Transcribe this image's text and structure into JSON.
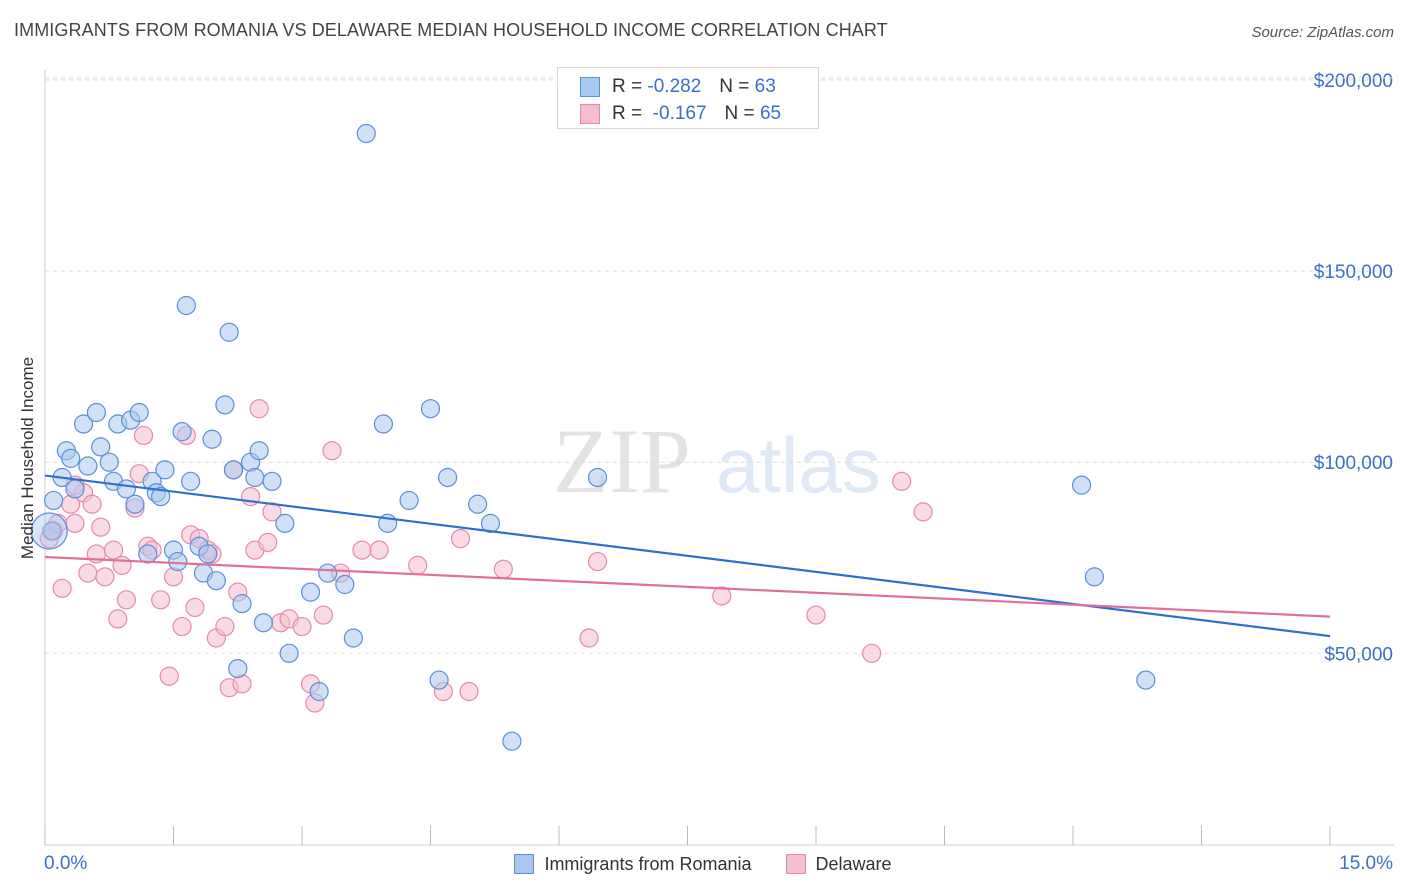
{
  "title": "IMMIGRANTS FROM ROMANIA VS DELAWARE MEDIAN HOUSEHOLD INCOME CORRELATION CHART",
  "source": "Source: ZipAtlas.com",
  "watermark": {
    "zip": "ZIP",
    "atlas": "atlas"
  },
  "legend_top": {
    "rows": [
      {
        "r_label": "R =",
        "r_value": "-0.282",
        "n_label": "N =",
        "n_value": "63"
      },
      {
        "r_label": "R =",
        "r_value": "-0.167",
        "n_label": "N =",
        "n_value": "65"
      }
    ]
  },
  "colors": {
    "romania_fill": "#a9c8f0",
    "romania_stroke": "#5b8fd6",
    "romania_line": "#2f6fd0",
    "delaware_fill": "#f6bdd0",
    "delaware_stroke": "#e58aab",
    "delaware_line": "#e06f9a",
    "axis_text": "#3b6fc8",
    "grid": "#dddddd"
  },
  "chart_data": {
    "type": "scatter",
    "title": "IMMIGRANTS FROM ROMANIA VS DELAWARE MEDIAN HOUSEHOLD INCOME CORRELATION CHART",
    "xlabel": "",
    "ylabel": "Median Household Income",
    "xlim": [
      0,
      15
    ],
    "ylim": [
      0,
      210000
    ],
    "x_tick_labels": [
      "0.0%",
      "15.0%"
    ],
    "y_ticks": [
      50000,
      100000,
      150000,
      200000
    ],
    "y_tick_labels": [
      "$50,000",
      "$100,000",
      "$150,000",
      "$200,000"
    ],
    "grid": true,
    "legend_position": "bottom",
    "series": [
      {
        "name": "Immigrants from Romania",
        "points": [
          [
            0.08,
            82000
          ],
          [
            0.1,
            90000
          ],
          [
            0.2,
            96000
          ],
          [
            0.25,
            103000
          ],
          [
            0.3,
            101000
          ],
          [
            0.35,
            93000
          ],
          [
            0.45,
            110000
          ],
          [
            0.5,
            99000
          ],
          [
            0.6,
            113000
          ],
          [
            0.65,
            104000
          ],
          [
            0.75,
            100000
          ],
          [
            0.8,
            95000
          ],
          [
            0.85,
            110000
          ],
          [
            0.95,
            93000
          ],
          [
            1.0,
            111000
          ],
          [
            1.05,
            89000
          ],
          [
            1.1,
            113000
          ],
          [
            1.2,
            76000
          ],
          [
            1.25,
            95000
          ],
          [
            1.3,
            92000
          ],
          [
            1.35,
            91000
          ],
          [
            1.4,
            98000
          ],
          [
            1.5,
            77000
          ],
          [
            1.55,
            74000
          ],
          [
            1.6,
            108000
          ],
          [
            1.65,
            141000
          ],
          [
            1.7,
            95000
          ],
          [
            1.8,
            78000
          ],
          [
            1.85,
            71000
          ],
          [
            1.9,
            76000
          ],
          [
            1.95,
            106000
          ],
          [
            2.0,
            69000
          ],
          [
            2.1,
            115000
          ],
          [
            2.15,
            134000
          ],
          [
            2.2,
            98000
          ],
          [
            2.25,
            46000
          ],
          [
            2.3,
            63000
          ],
          [
            2.4,
            100000
          ],
          [
            2.45,
            96000
          ],
          [
            2.5,
            103000
          ],
          [
            2.55,
            58000
          ],
          [
            2.65,
            95000
          ],
          [
            2.8,
            84000
          ],
          [
            2.85,
            50000
          ],
          [
            3.1,
            66000
          ],
          [
            3.2,
            40000
          ],
          [
            3.3,
            71000
          ],
          [
            3.5,
            68000
          ],
          [
            3.6,
            54000
          ],
          [
            3.75,
            186000
          ],
          [
            3.95,
            110000
          ],
          [
            4.0,
            84000
          ],
          [
            4.25,
            90000
          ],
          [
            4.5,
            114000
          ],
          [
            4.6,
            43000
          ],
          [
            4.7,
            96000
          ],
          [
            5.05,
            89000
          ],
          [
            5.2,
            84000
          ],
          [
            5.45,
            27000
          ],
          [
            6.45,
            96000
          ],
          [
            12.1,
            94000
          ],
          [
            12.25,
            70000
          ],
          [
            12.85,
            43000
          ]
        ]
      },
      {
        "name": "Delaware",
        "points": [
          [
            0.05,
            80000
          ],
          [
            0.1,
            82000
          ],
          [
            0.15,
            84000
          ],
          [
            0.2,
            67000
          ],
          [
            0.3,
            89000
          ],
          [
            0.35,
            84000
          ],
          [
            0.45,
            92000
          ],
          [
            0.5,
            71000
          ],
          [
            0.55,
            89000
          ],
          [
            0.6,
            76000
          ],
          [
            0.65,
            83000
          ],
          [
            0.7,
            70000
          ],
          [
            0.8,
            77000
          ],
          [
            0.85,
            59000
          ],
          [
            0.9,
            73000
          ],
          [
            0.95,
            64000
          ],
          [
            1.05,
            88000
          ],
          [
            1.1,
            97000
          ],
          [
            1.15,
            107000
          ],
          [
            1.2,
            78000
          ],
          [
            1.25,
            77000
          ],
          [
            1.35,
            64000
          ],
          [
            1.45,
            44000
          ],
          [
            1.5,
            70000
          ],
          [
            1.6,
            57000
          ],
          [
            1.65,
            107000
          ],
          [
            1.7,
            81000
          ],
          [
            1.75,
            62000
          ],
          [
            1.8,
            80000
          ],
          [
            1.9,
            77000
          ],
          [
            2.0,
            54000
          ],
          [
            2.1,
            57000
          ],
          [
            2.15,
            41000
          ],
          [
            2.2,
            98000
          ],
          [
            2.25,
            66000
          ],
          [
            2.3,
            42000
          ],
          [
            2.4,
            91000
          ],
          [
            2.45,
            77000
          ],
          [
            2.5,
            114000
          ],
          [
            2.6,
            79000
          ],
          [
            2.65,
            87000
          ],
          [
            2.75,
            58000
          ],
          [
            2.85,
            59000
          ],
          [
            3.0,
            57000
          ],
          [
            3.1,
            42000
          ],
          [
            3.15,
            37000
          ],
          [
            3.25,
            60000
          ],
          [
            3.35,
            103000
          ],
          [
            3.45,
            71000
          ],
          [
            3.7,
            77000
          ],
          [
            3.9,
            77000
          ],
          [
            4.35,
            73000
          ],
          [
            4.65,
            40000
          ],
          [
            4.85,
            80000
          ],
          [
            4.95,
            40000
          ],
          [
            5.35,
            72000
          ],
          [
            6.35,
            54000
          ],
          [
            6.45,
            74000
          ],
          [
            7.9,
            65000
          ],
          [
            9.0,
            60000
          ],
          [
            9.65,
            50000
          ],
          [
            10.0,
            95000
          ],
          [
            10.25,
            87000
          ],
          [
            0.35,
            94000
          ],
          [
            1.95,
            76000
          ]
        ]
      }
    ],
    "trend_lines": [
      {
        "name": "Immigrants from Romania",
        "from": [
          0,
          96500
        ],
        "to": [
          15,
          54500
        ]
      },
      {
        "name": "Delaware",
        "from": [
          0,
          75200
        ],
        "to": [
          15,
          59600
        ]
      }
    ]
  },
  "legend_bottom": {
    "romania_label": "Immigrants from Romania",
    "delaware_label": "Delaware"
  }
}
